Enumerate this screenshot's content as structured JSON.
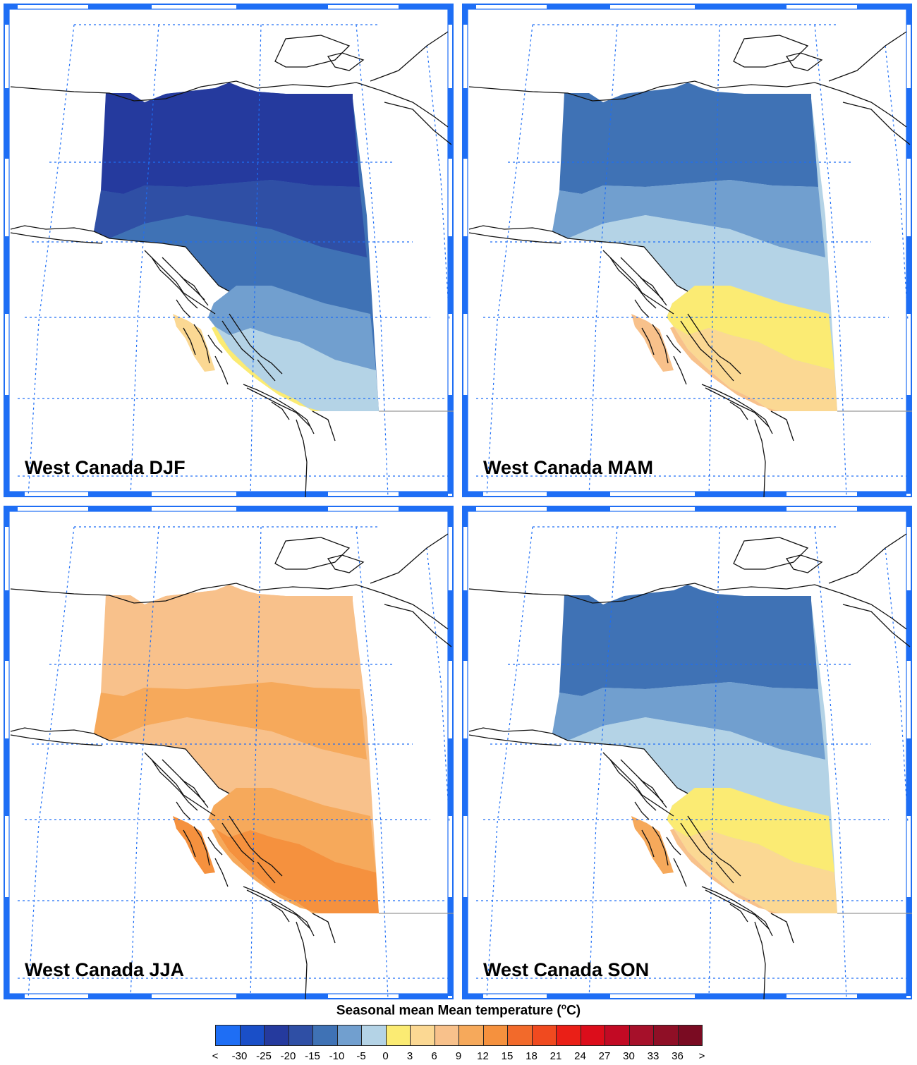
{
  "panels": [
    {
      "label": "West Canada DJF",
      "season": "DJF",
      "fields": {
        "north": "-25",
        "band": "-20",
        "mid": "-15",
        "south": "-10",
        "southeast": "-5",
        "coast": "0",
        "coast_outer": "3"
      }
    },
    {
      "label": "West Canada MAM",
      "season": "MAM",
      "fields": {
        "north": "-15",
        "band": "-10",
        "mid": "-5",
        "south": "0",
        "southeast": "3",
        "coast": "6",
        "coast_outer": "6"
      }
    },
    {
      "label": "West Canada JJA",
      "season": "JJA",
      "fields": {
        "north": "6",
        "band": "9",
        "mid": "6",
        "south": "9",
        "southeast": "12",
        "coast": "9",
        "coast_outer": "12"
      }
    },
    {
      "label": "West Canada SON",
      "season": "SON",
      "fields": {
        "north": "-15",
        "band": "-10",
        "mid": "-5",
        "south": "0",
        "southeast": "3",
        "coast": "6",
        "coast_outer": "9"
      }
    }
  ],
  "colorbar": {
    "title": "Seasonal mean Mean temperature (",
    "title_sup": "o",
    "title_end": "C)",
    "bins": [
      {
        "key": "lt",
        "color": "#1e6ef5"
      },
      {
        "key": "-30",
        "color": "#1a4fc8"
      },
      {
        "key": "-25",
        "color": "#253a9e"
      },
      {
        "key": "-20",
        "color": "#2f4fa5"
      },
      {
        "key": "-15",
        "color": "#3f72b5"
      },
      {
        "key": "-10",
        "color": "#719fcf"
      },
      {
        "key": "-5",
        "color": "#b4d3e6"
      },
      {
        "key": "0",
        "color": "#fbeb73"
      },
      {
        "key": "3",
        "color": "#fbd893"
      },
      {
        "key": "6",
        "color": "#f8c18b"
      },
      {
        "key": "9",
        "color": "#f6a95b"
      },
      {
        "key": "12",
        "color": "#f5913e"
      },
      {
        "key": "15",
        "color": "#f26a2b"
      },
      {
        "key": "18",
        "color": "#f04a1f"
      },
      {
        "key": "21",
        "color": "#ea1f17"
      },
      {
        "key": "24",
        "color": "#dc0d1b"
      },
      {
        "key": "27",
        "color": "#c20a24"
      },
      {
        "key": "30",
        "color": "#a6102a"
      },
      {
        "key": "33",
        "color": "#8f0f26"
      },
      {
        "key": "36",
        "color": "#7a0b22"
      }
    ],
    "ticks": [
      "<",
      "-30",
      "-25",
      "-20",
      "-15",
      "-10",
      "-5",
      "0",
      "3",
      "6",
      "9",
      "12",
      "15",
      "18",
      "21",
      "24",
      "27",
      "30",
      "33",
      "36",
      ">"
    ]
  }
}
